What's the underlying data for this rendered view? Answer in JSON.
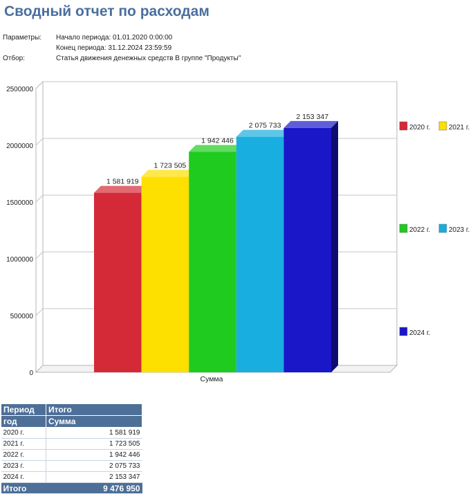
{
  "report": {
    "title": "Сводный отчет по расходам",
    "params_label": "Параметры:",
    "period_start": "Начало периода: 01.01.2020 0:00:00",
    "period_end": "Конец периода: 31.12.2024 23:59:59",
    "filter_label": "Отбор:",
    "filter_value": "Статья движения денежных средств В группе \"Продукты\""
  },
  "chart_data": {
    "type": "bar",
    "categories": [
      "Сумма"
    ],
    "xlabel": "",
    "ylabel": "",
    "ylim": [
      0,
      2500000
    ],
    "yticks": [
      "0",
      "500000",
      "1000000",
      "1500000",
      "2000000",
      "2500000"
    ],
    "grid": true,
    "legend": "right",
    "series": [
      {
        "name": "2020 г.",
        "value": 1581919,
        "label": "1 581 919",
        "color": "#d42a37"
      },
      {
        "name": "2021 г.",
        "value": 1723505,
        "label": "1 723 505",
        "color": "#fde000"
      },
      {
        "name": "2022 г.",
        "value": 1942446,
        "label": "1 942 446",
        "color": "#1ecb1e"
      },
      {
        "name": "2023 г.",
        "value": 2075733,
        "label": "2 075 733",
        "color": "#19aee0"
      },
      {
        "name": "2024 г.",
        "value": 2153347,
        "label": "2 153 347",
        "color": "#1a17c9"
      }
    ]
  },
  "table": {
    "header": {
      "period": "Период",
      "year": "год",
      "total": "Итого",
      "sum": "Сумма"
    },
    "rows": [
      {
        "year": "2020 г.",
        "sum": "1 581 919"
      },
      {
        "year": "2021 г.",
        "sum": "1 723 505"
      },
      {
        "year": "2022 г.",
        "sum": "1 942 446"
      },
      {
        "year": "2023 г.",
        "sum": "2 075 733"
      },
      {
        "year": "2024 г.",
        "sum": "2 153 347"
      }
    ],
    "footer": {
      "label": "Итого",
      "sum": "9 476 950"
    }
  }
}
